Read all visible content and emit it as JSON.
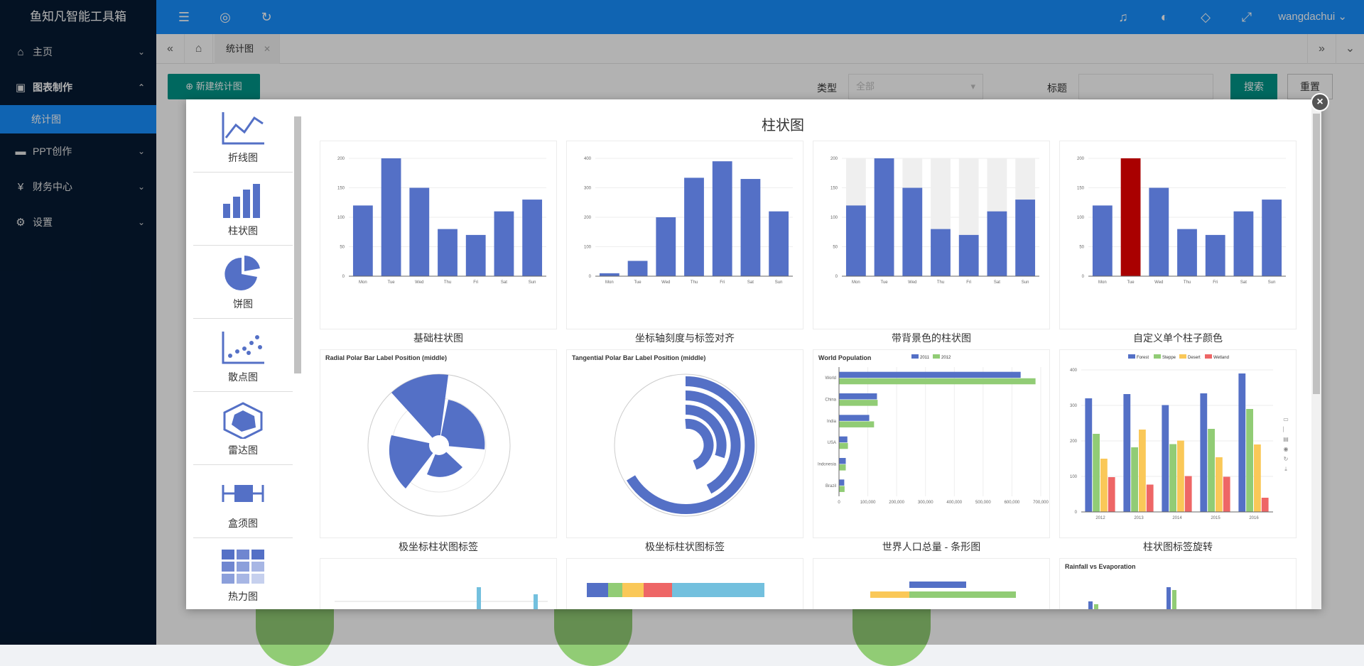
{
  "app": {
    "brand": "鱼知凡智能工具箱"
  },
  "sidebar": {
    "items": [
      {
        "label": "主页",
        "icon": "home-icon"
      },
      {
        "label": "图表制作",
        "icon": "image-icon"
      },
      {
        "label": "PPT创作",
        "icon": "presentation-icon"
      },
      {
        "label": "财务中心",
        "icon": "yen-icon"
      },
      {
        "label": "设置",
        "icon": "gear-icon"
      }
    ],
    "active_sub": "统计图"
  },
  "header": {
    "user": "wangdachui"
  },
  "tabs": {
    "active_label": "统计图"
  },
  "page": {
    "new_button": "新建统计图",
    "type_label": "类型",
    "type_value": "全部",
    "title_label": "标题",
    "search_button": "搜索",
    "reset_button": "重置"
  },
  "modal": {
    "title": "柱状图",
    "chart_types": [
      "折线图",
      "柱状图",
      "饼图",
      "散点图",
      "雷达图",
      "盒须图",
      "热力图"
    ],
    "captions": [
      "基础柱状图",
      "坐标轴刻度与标签对齐",
      "带背景色的柱状图",
      "自定义单个柱子颜色",
      "极坐标柱状图标签",
      "极坐标柱状图标签",
      "世界人口总量 - 条形图",
      "柱状图标签旋转"
    ],
    "card_titles": {
      "radial": "Radial Polar Bar Label Position (middle)",
      "tangential": "Tangential Polar Bar Label Position (middle)",
      "world": "World Population",
      "rainfall": "Rainfall vs Evaporation"
    }
  },
  "chart_data": [
    {
      "type": "bar",
      "title": "基础柱状图",
      "categories": [
        "Mon",
        "Tue",
        "Wed",
        "Thu",
        "Fri",
        "Sat",
        "Sun"
      ],
      "values": [
        120,
        200,
        150,
        80,
        70,
        110,
        130
      ],
      "ylim": [
        0,
        200
      ]
    },
    {
      "type": "bar",
      "title": "坐标轴刻度与标签对齐",
      "categories": [
        "Mon",
        "Tue",
        "Wed",
        "Thu",
        "Fri",
        "Sat",
        "Sun"
      ],
      "values": [
        10,
        52,
        200,
        334,
        390,
        330,
        220
      ],
      "ylim": [
        0,
        400
      ]
    },
    {
      "type": "bar",
      "title": "带背景色的柱状图",
      "categories": [
        "Mon",
        "Tue",
        "Wed",
        "Thu",
        "Fri",
        "Sat",
        "Sun"
      ],
      "values": [
        120,
        200,
        150,
        80,
        70,
        110,
        130
      ],
      "ylim": [
        0,
        200
      ],
      "background_bars": true
    },
    {
      "type": "bar",
      "title": "自定义单个柱子颜色",
      "categories": [
        "Mon",
        "Tue",
        "Wed",
        "Thu",
        "Fri",
        "Sat",
        "Sun"
      ],
      "values": [
        120,
        200,
        150,
        80,
        70,
        110,
        130
      ],
      "ylim": [
        0,
        200
      ],
      "highlight_index": 1,
      "highlight_color": "#a90000"
    },
    {
      "type": "bar",
      "title": "世界人口总量 - 条形图",
      "orientation": "horizontal",
      "categories": [
        "Brazil",
        "Indonesia",
        "USA",
        "India",
        "China",
        "World"
      ],
      "series": [
        {
          "name": "2011",
          "values": [
            18203,
            23489,
            29034,
            104970,
            131744,
            630230
          ]
        },
        {
          "name": "2012",
          "values": [
            19325,
            23438,
            31000,
            121594,
            134141,
            681807
          ]
        }
      ],
      "xticks": [
        "0",
        "100,000",
        "200,000",
        "300,000",
        "400,000",
        "500,000",
        "600,000",
        "700,000"
      ]
    },
    {
      "type": "bar",
      "title": "柱状图标签旋转",
      "categories": [
        "2012",
        "2013",
        "2014",
        "2015",
        "2016"
      ],
      "series": [
        {
          "name": "Forest",
          "values": [
            320,
            332,
            301,
            334,
            390
          ]
        },
        {
          "name": "Steppe",
          "values": [
            220,
            182,
            191,
            234,
            290
          ]
        },
        {
          "name": "Desert",
          "values": [
            150,
            232,
            201,
            154,
            190
          ]
        },
        {
          "name": "Wetland",
          "values": [
            98,
            77,
            101,
            99,
            40
          ]
        }
      ],
      "ylim": [
        0,
        400
      ]
    }
  ],
  "colors": {
    "primary": "#1890ff",
    "sidebar": "#061a33",
    "teal": "#009688",
    "bar": "#5470c6",
    "green": "#91cc75",
    "yellow": "#fac858",
    "red": "#ee6666"
  }
}
